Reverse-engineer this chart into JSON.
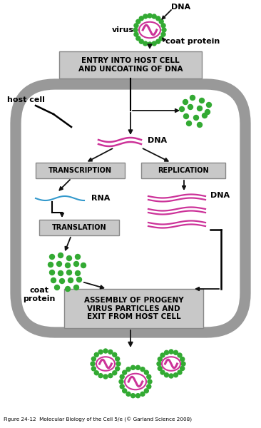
{
  "bg_color": "#ffffff",
  "cell_color": "#999999",
  "box_color": "#c8c8c8",
  "box_edge": "#888888",
  "dna_color": "#cc3399",
  "dot_color": "#33aa33",
  "rna_color": "#3399cc",
  "arrow_color": "#111111",
  "title_text": "Figure 24-12  Molecular Biology of the Cell 5/e (© Garland Science 2008)",
  "label_entry": "ENTRY INTO HOST CELL\nAND UNCOATING OF DNA",
  "label_transcription": "TRANSCRIPTION",
  "label_replication": "REPLICATION",
  "label_translation": "TRANSLATION",
  "label_assembly": "ASSEMBLY OF PROGENY\nVIRUS PARTICLES AND\nEXIT FROM HOST CELL",
  "label_dna_top": "DNA",
  "label_dna_mid": "DNA",
  "label_dna_right": "DNA",
  "label_rna": "RNA",
  "label_virus": "virus",
  "label_coat": "coat protein",
  "label_coat2": "coat\nprotein",
  "label_host": "host cell"
}
